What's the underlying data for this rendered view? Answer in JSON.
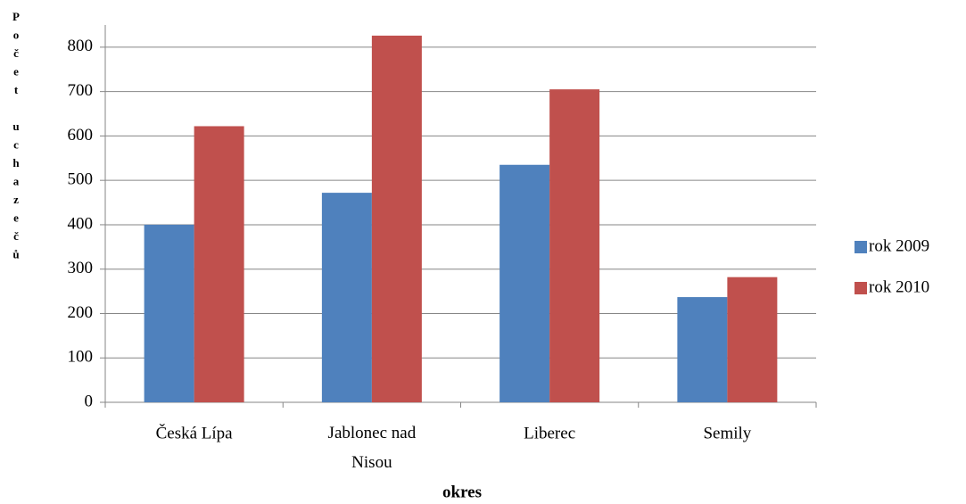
{
  "chart_data": {
    "type": "bar",
    "categories": [
      "Česká Lípa",
      "Jablonec nad Nisou",
      "Liberec",
      "Semily"
    ],
    "series": [
      {
        "name": "rok 2009",
        "color": "#4f81bd",
        "values": [
          400,
          472,
          535,
          237
        ]
      },
      {
        "name": "rok 2010",
        "color": "#c0504d",
        "values": [
          622,
          826,
          705,
          282
        ]
      }
    ],
    "xlabel": "okres",
    "ylabel": "Počet uchazečů",
    "ylim": [
      0,
      850
    ],
    "yticks": [
      0,
      100,
      200,
      300,
      400,
      500,
      600,
      700,
      800
    ],
    "grid": true,
    "legend": "right"
  }
}
